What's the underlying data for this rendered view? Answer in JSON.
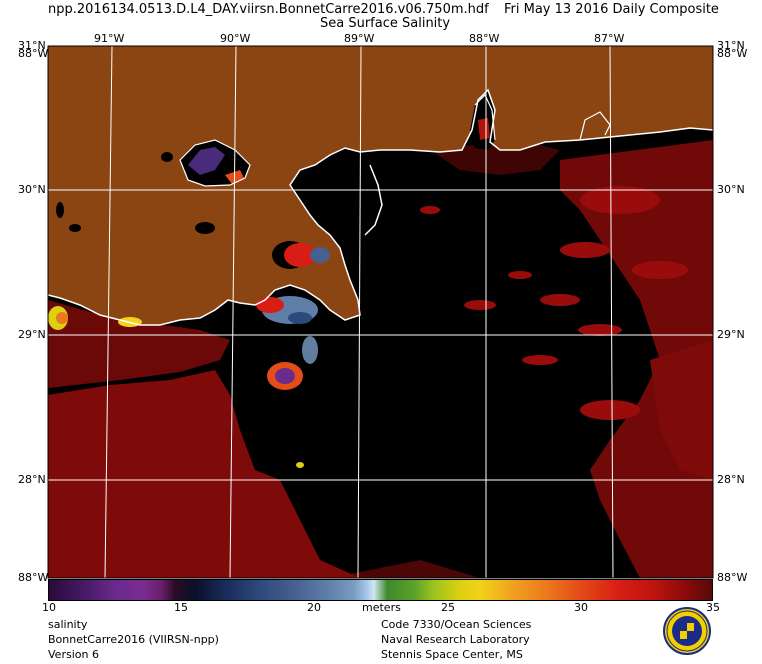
{
  "header": {
    "filename": "npp.2016134.0513.D.L4_DAY.viirsn.BonnetCarre2016.v06.750m.hdf",
    "date_label": "Fri May 13 2016 Daily Composite",
    "product_title": "Sea Surface Salinity"
  },
  "map": {
    "longitude_labels_top": [
      "91°W",
      "90°W",
      "89°W",
      "88°W",
      "87°W"
    ],
    "latitude_labels_left": [
      "31°N",
      "30°N",
      "29°N",
      "28°N"
    ],
    "latitude_labels_right": [
      "31°N",
      "30°N",
      "29°N",
      "28°N"
    ],
    "corner_labels": {
      "top_left_overlap": "88°W",
      "top_right_overlap": "88°W",
      "bottom_left": "88°W",
      "bottom_right": "88°W"
    },
    "colors": {
      "land": "#8b4513",
      "ocean_no_data": "#000000",
      "high_salinity": "#8b0a0a",
      "coastline": "#ffffff",
      "grid": "#ffffff"
    }
  },
  "colorbar": {
    "min": 10,
    "max": 35,
    "tick_labels": [
      "10",
      "15",
      "20",
      "25",
      "30",
      "35"
    ],
    "units": "meters"
  },
  "footer": {
    "left": [
      "salinity",
      "BonnetCarre2016 (VIIRSN-npp)",
      "Version 6"
    ],
    "right": [
      "Code 7330/Ocean Sciences",
      "Naval Research Laboratory",
      "Stennis Space Center, MS"
    ]
  }
}
